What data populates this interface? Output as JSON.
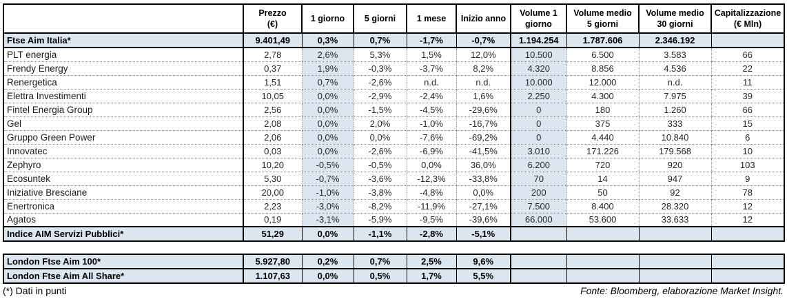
{
  "colors": {
    "highlight": "#dce6f1",
    "border": "#000000",
    "dotted_border": "#8a8a8a"
  },
  "footnote": "(*) Dati in punti",
  "source": "Fonte: Bloomberg, elaborazione Market Insight.",
  "columns": [
    "",
    "Prezzo\n(€)",
    "1 giorno",
    "5 giorni",
    "1 mese",
    "Inizio anno",
    "Volume 1\ngiorno",
    "Volume medio\n5 giorni",
    "Volume medio\n30 giorni",
    "Capitalizzazione\n(€ Mln)"
  ],
  "column_keys": [
    "prezzo",
    "1-giorno",
    "5-giorni",
    "1-mese",
    "inizio-anno",
    "volume-1-giorno",
    "volume-medio-5-giorni",
    "volume-medio-30-giorni",
    "capitalizzazione"
  ],
  "main_table": {
    "rows": [
      {
        "name": "Ftse Aim Italia*",
        "type": "index",
        "values": [
          "9.401,49",
          "0,3%",
          "0,7%",
          "-1,7%",
          "-0,7%",
          "1.194.254",
          "1.787.606",
          "2.346.192",
          ""
        ]
      },
      {
        "name": "PLT energia",
        "type": "data",
        "values": [
          "2,78",
          "2,6%",
          "5,3%",
          "1,5%",
          "12,0%",
          "10.500",
          "6.500",
          "3.583",
          "66"
        ]
      },
      {
        "name": "Frendy Energy",
        "type": "data",
        "values": [
          "0,37",
          "1,9%",
          "-0,3%",
          "-3,7%",
          "8,2%",
          "4.320",
          "8.856",
          "4.536",
          "22"
        ]
      },
      {
        "name": "Renergetica",
        "type": "data",
        "values": [
          "1,51",
          "0,7%",
          "-2,6%",
          "n.d.",
          "n.d.",
          "10.000",
          "12.000",
          "n.d.",
          "11"
        ]
      },
      {
        "name": "Elettra Investimenti",
        "type": "data",
        "values": [
          "10,05",
          "0,0%",
          "-2,9%",
          "-2,4%",
          "1,6%",
          "2.250",
          "4.300",
          "7.975",
          "39"
        ]
      },
      {
        "name": "Fintel Energia Group",
        "type": "data",
        "values": [
          "2,56",
          "0,0%",
          "-1,5%",
          "-4,5%",
          "-29,6%",
          "0",
          "180",
          "1.260",
          "66"
        ]
      },
      {
        "name": "Gel",
        "type": "data",
        "values": [
          "2,08",
          "0,0%",
          "2,0%",
          "-1,0%",
          "-16,7%",
          "0",
          "375",
          "333",
          "15"
        ]
      },
      {
        "name": "Gruppo Green Power",
        "type": "data",
        "values": [
          "2,06",
          "0,0%",
          "0,0%",
          "-7,6%",
          "-69,2%",
          "0",
          "4.440",
          "10.840",
          "6"
        ]
      },
      {
        "name": "Innovatec",
        "type": "data",
        "values": [
          "0,03",
          "0,0%",
          "-2,6%",
          "-6,9%",
          "-41,5%",
          "3.010",
          "171.226",
          "179.568",
          "10"
        ]
      },
      {
        "name": "Zephyro",
        "type": "data",
        "values": [
          "10,20",
          "-0,5%",
          "-0,5%",
          "0,0%",
          "36,0%",
          "6.200",
          "720",
          "920",
          "103"
        ]
      },
      {
        "name": "Ecosuntek",
        "type": "data",
        "values": [
          "5,30",
          "-0,7%",
          "-3,6%",
          "-12,3%",
          "-33,8%",
          "70",
          "14",
          "947",
          "9"
        ]
      },
      {
        "name": "Iniziative Bresciane",
        "type": "data",
        "values": [
          "20,00",
          "-1,0%",
          "-3,8%",
          "-4,8%",
          "0,0%",
          "200",
          "50",
          "92",
          "78"
        ]
      },
      {
        "name": "Enertronica",
        "type": "data",
        "values": [
          "2,23",
          "-3,0%",
          "-8,2%",
          "-11,9%",
          "-27,1%",
          "7.500",
          "8.400",
          "28.320",
          "12"
        ]
      },
      {
        "name": "Agatos",
        "type": "data",
        "values": [
          "0,19",
          "-3,1%",
          "-5,9%",
          "-9,5%",
          "-39,6%",
          "66.000",
          "53.600",
          "33.633",
          "12"
        ]
      },
      {
        "name": "Indice AIM Servizi Pubblici*",
        "type": "index",
        "values": [
          "51,29",
          "0,0%",
          "-1,1%",
          "-2,8%",
          "-5,1%",
          "",
          "",
          "",
          ""
        ]
      }
    ]
  },
  "london_table": {
    "rows": [
      {
        "name": "London Ftse Aim 100*",
        "type": "index",
        "values": [
          "5.927,80",
          "0,2%",
          "0,7%",
          "2,5%",
          "9,6%",
          "",
          "",
          "",
          ""
        ]
      },
      {
        "name": "London Ftse Aim All Share*",
        "type": "index",
        "values": [
          "1.107,63",
          "0,0%",
          "0,5%",
          "1,7%",
          "5,5%",
          "",
          "",
          "",
          ""
        ]
      }
    ]
  }
}
